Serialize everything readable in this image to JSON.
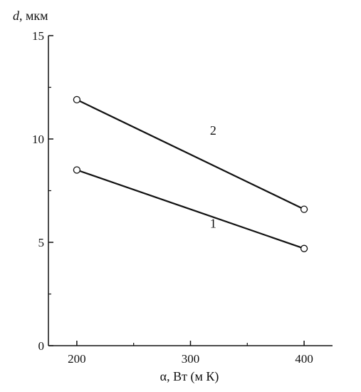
{
  "chart_data": {
    "type": "line",
    "ylabel_var": "d",
    "ylabel_unit": ", мкм",
    "xlabel": "α, Вт (м К)",
    "xlim": [
      175,
      425
    ],
    "ylim": [
      0,
      15
    ],
    "x_ticks": [
      200,
      300,
      400
    ],
    "x_tick_labels": [
      "200",
      "300",
      "400"
    ],
    "x_minor_ticks": [
      250,
      350
    ],
    "y_ticks": [
      0,
      5,
      10,
      15
    ],
    "y_tick_labels": [
      "0",
      "5",
      "10",
      "15"
    ],
    "y_minor_ticks": [
      2.5,
      7.5,
      12.5
    ],
    "grid": false,
    "legend": "none",
    "series": [
      {
        "label": "1",
        "x": [
          200,
          400
        ],
        "y": [
          8.5,
          4.7
        ],
        "label_at": [
          320,
          5.7
        ],
        "color": "#111111",
        "marker": "open-circle"
      },
      {
        "label": "2",
        "x": [
          200,
          400
        ],
        "y": [
          11.9,
          6.6
        ],
        "label_at": [
          320,
          10.2
        ],
        "color": "#111111",
        "marker": "open-circle"
      }
    ]
  }
}
